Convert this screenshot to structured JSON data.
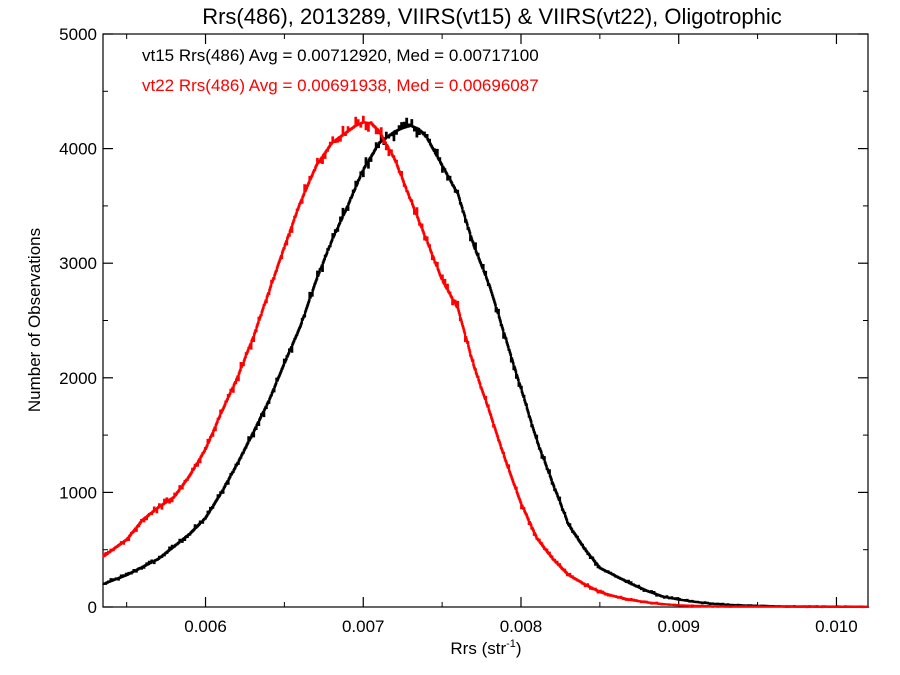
{
  "chart_data": {
    "type": "line",
    "title": "Rrs(486), 2013289, VIIRS(vt15) & VIIRS(vt22), Oligotrophic",
    "xlabel": "Rrs (str",
    "xlabel_sup": "-1",
    "xlabel_end": ")",
    "ylabel": "Number of Observations",
    "xlim": [
      0.00535,
      0.0102
    ],
    "ylim": [
      0,
      5000
    ],
    "xticks": [
      0.006,
      0.007,
      0.008,
      0.009,
      0.01
    ],
    "xtick_labels": [
      "0.006",
      "0.007",
      "0.008",
      "0.009",
      "0.010"
    ],
    "yticks": [
      0,
      1000,
      2000,
      3000,
      4000,
      5000
    ],
    "ytick_labels": [
      "0",
      "1000",
      "2000",
      "3000",
      "4000",
      "5000"
    ],
    "grid": false,
    "step": true,
    "annotations": [
      {
        "text": "vt15 Rrs(486) Avg = 0.00712920, Med = 0.00717100",
        "color": "#000000"
      },
      {
        "text": "vt22 Rrs(486) Avg = 0.00691938, Med = 0.00696087",
        "color": "#ff0000"
      }
    ],
    "series": [
      {
        "color": "#000000",
        "x": [
          0.00535,
          0.0055,
          0.0056,
          0.0057,
          0.0058,
          0.0059,
          0.006,
          0.0061,
          0.0062,
          0.0063,
          0.0064,
          0.0065,
          0.0066,
          0.0067,
          0.0068,
          0.0069,
          0.007,
          0.0071,
          0.0072,
          0.00725,
          0.0073,
          0.00735,
          0.0074,
          0.0075,
          0.0076,
          0.0077,
          0.0078,
          0.0079,
          0.008,
          0.0081,
          0.0082,
          0.0083,
          0.0084,
          0.0085,
          0.0086,
          0.0087,
          0.0088,
          0.0089,
          0.009,
          0.0091,
          0.0092,
          0.0093,
          0.0094,
          0.0095,
          0.0097,
          0.0102
        ],
        "y": [
          200,
          280,
          350,
          420,
          530,
          640,
          780,
          1000,
          1250,
          1520,
          1800,
          2130,
          2450,
          2850,
          3200,
          3500,
          3820,
          4050,
          4150,
          4180,
          4200,
          4170,
          4100,
          3850,
          3600,
          3150,
          2800,
          2350,
          1900,
          1450,
          1080,
          720,
          510,
          340,
          270,
          200,
          140,
          90,
          65,
          45,
          30,
          20,
          14,
          10,
          5,
          2
        ]
      },
      {
        "color": "#ff0000",
        "x": [
          0.00535,
          0.0055,
          0.0056,
          0.0057,
          0.0058,
          0.0059,
          0.006,
          0.0061,
          0.0062,
          0.0063,
          0.0064,
          0.0065,
          0.0066,
          0.0067,
          0.0068,
          0.0069,
          0.00695,
          0.007,
          0.00705,
          0.0071,
          0.0072,
          0.0073,
          0.0074,
          0.0075,
          0.0076,
          0.0077,
          0.0078,
          0.0079,
          0.008,
          0.0081,
          0.0082,
          0.0083,
          0.0084,
          0.0085,
          0.0086,
          0.0087,
          0.0088,
          0.0089,
          0.009,
          0.0091,
          0.0092,
          0.0093,
          0.0095,
          0.0097,
          0.0102
        ],
        "y": [
          440,
          590,
          760,
          870,
          960,
          1150,
          1380,
          1700,
          2000,
          2350,
          2750,
          3150,
          3530,
          3850,
          4050,
          4150,
          4200,
          4230,
          4220,
          4150,
          3900,
          3550,
          3200,
          2850,
          2600,
          2100,
          1700,
          1280,
          900,
          600,
          420,
          280,
          200,
          130,
          90,
          60,
          40,
          25,
          15,
          10,
          6,
          4,
          3,
          2,
          1
        ]
      }
    ]
  }
}
